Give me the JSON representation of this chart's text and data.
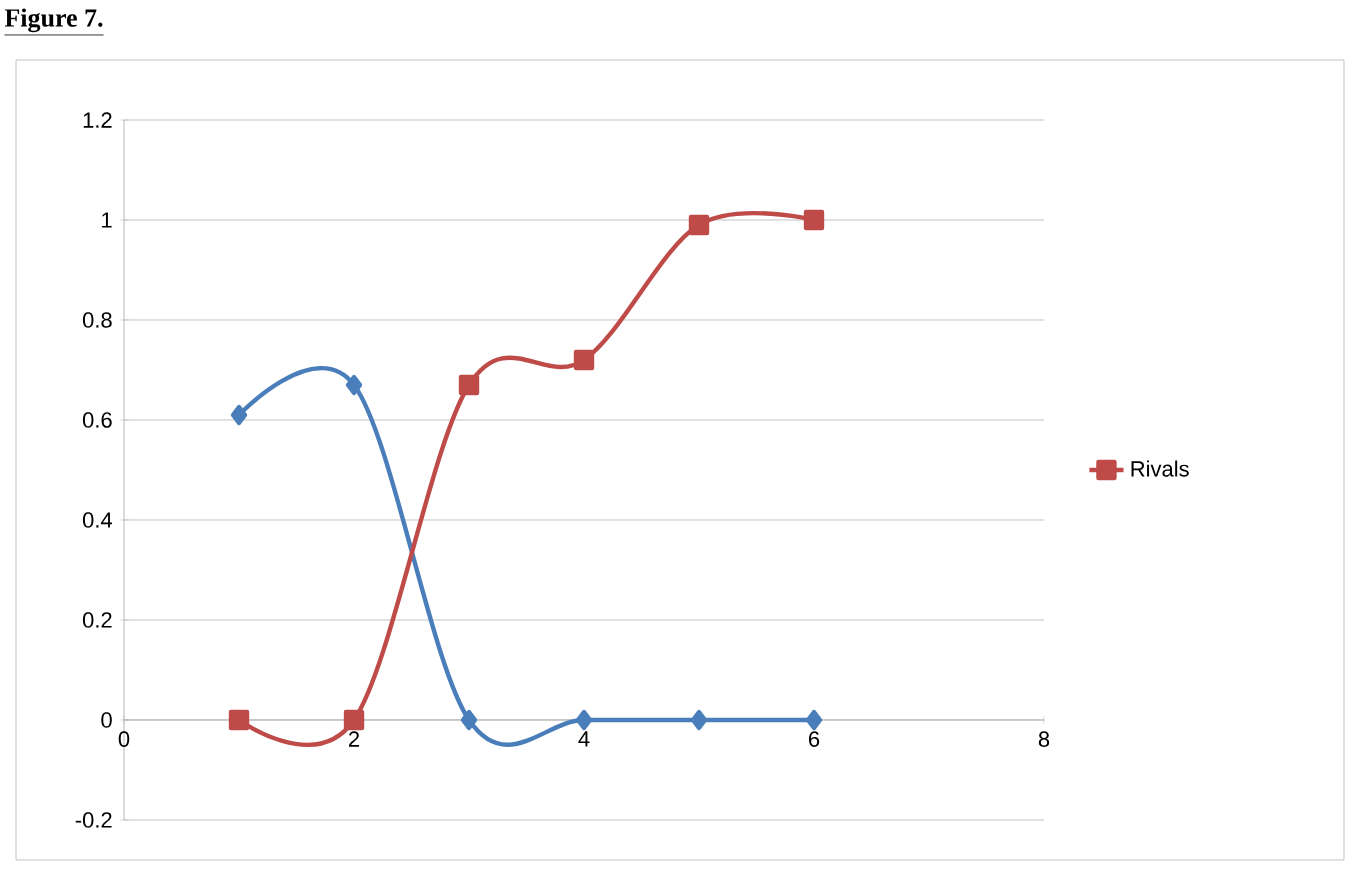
{
  "chart_data": {
    "type": "line",
    "title": "Figure 7.",
    "x": [
      1,
      2,
      3,
      4,
      5,
      6
    ],
    "series": [
      {
        "color": "#4a7ebb",
        "values": [
          0.61,
          0.67,
          0,
          0,
          0,
          0
        ],
        "marker": "diamond"
      },
      {
        "name": "Rivals",
        "color": "#be4b48",
        "values": [
          0,
          0,
          0.67,
          0.72,
          0.99,
          1.0
        ],
        "marker": "square"
      }
    ],
    "xlim": [
      0,
      8
    ],
    "xticks": [
      0,
      2,
      4,
      6,
      8
    ],
    "ylim": [
      -0.2,
      1.2
    ],
    "yticks": [
      -0.2,
      0,
      0.2,
      0.4,
      0.6,
      0.8,
      1,
      1.2
    ],
    "grid": "y",
    "legend": "right",
    "line_style": "solid"
  }
}
